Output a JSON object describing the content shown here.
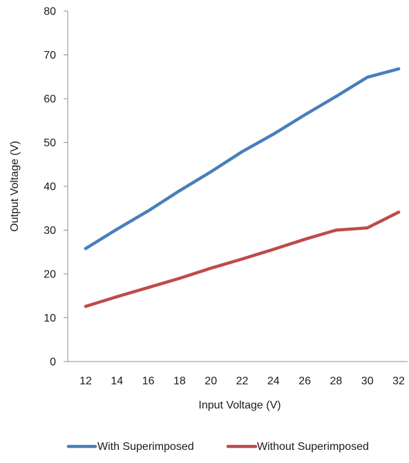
{
  "chart_data": {
    "type": "line",
    "title": "",
    "xlabel": "Input Voltage (V)",
    "ylabel": "Output Voltage (V)",
    "x": [
      12,
      14,
      16,
      18,
      20,
      22,
      24,
      26,
      28,
      30,
      32
    ],
    "x_tick_labels": [
      "12",
      "14",
      "16",
      "18",
      "20",
      "22",
      "24",
      "26",
      "28",
      "30",
      "32"
    ],
    "y_tick_labels": [
      "0",
      "10",
      "20",
      "30",
      "40",
      "50",
      "60",
      "70",
      "80"
    ],
    "ylim": [
      0,
      80
    ],
    "y_ticks": [
      0,
      10,
      20,
      30,
      40,
      50,
      60,
      70,
      80
    ],
    "grid": false,
    "legend_position": "bottom",
    "series": [
      {
        "name": "With Superimposed",
        "color": "#4a7ebb",
        "values": [
          25.8,
          30.2,
          34.4,
          39.0,
          43.3,
          47.9,
          51.9,
          56.3,
          60.5,
          64.9,
          66.8
        ]
      },
      {
        "name": "Without Superimposed",
        "color": "#be4b48",
        "values": [
          12.6,
          14.8,
          16.9,
          19.0,
          21.3,
          23.4,
          25.6,
          27.9,
          30.0,
          30.5,
          34.1
        ]
      }
    ]
  }
}
